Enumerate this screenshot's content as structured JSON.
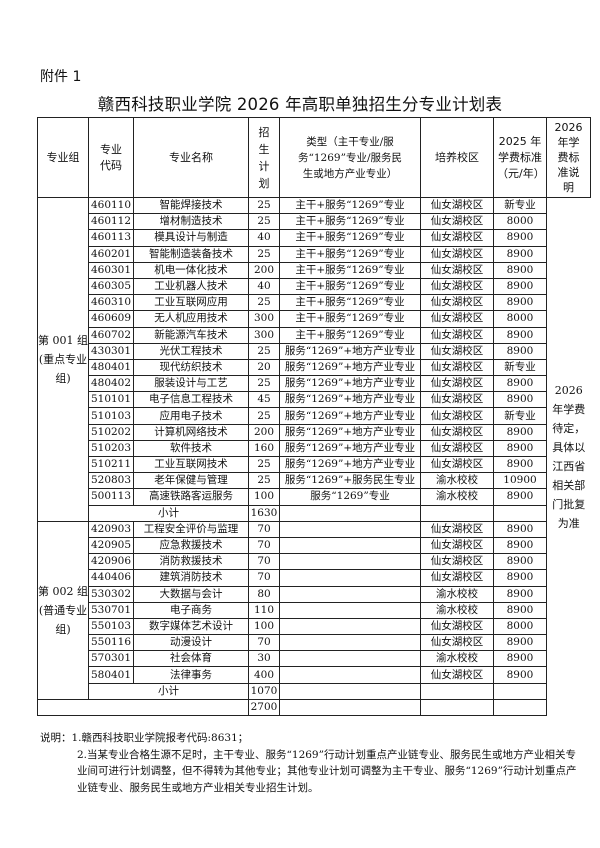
{
  "attachment_label": "附件 1",
  "title": "赣西科技职业学院 2026 年高职单独招生分专业计划表",
  "headers": {
    "group": "专业组",
    "code": "专业代码",
    "name": "专业名称",
    "plan": "招生计划",
    "type": "类型（主干专业/服务“1269”专业/服务民生或地方产业专业）",
    "campus": "培养校区",
    "fee2025": "2025 年学费标准（元/年）",
    "fee2026": "2026 年学费标准说明"
  },
  "fee2026_note": "2026 年学费待定，具体以江西省相关部门批复为准",
  "groups": [
    {
      "label": "第 001 组(重点专业组)",
      "rows": [
        {
          "code": "460110",
          "name": "智能焊接技术",
          "plan": "25",
          "type": "主干+服务“1269”专业",
          "campus": "仙女湖校区",
          "fee": "新专业"
        },
        {
          "code": "460112",
          "name": "增材制造技术",
          "plan": "25",
          "type": "主干+服务“1269”专业",
          "campus": "仙女湖校区",
          "fee": "8000"
        },
        {
          "code": "460113",
          "name": "模具设计与制造",
          "plan": "40",
          "type": "主干+服务“1269”专业",
          "campus": "仙女湖校区",
          "fee": "8900"
        },
        {
          "code": "460201",
          "name": "智能制造装备技术",
          "plan": "25",
          "type": "主干+服务“1269”专业",
          "campus": "仙女湖校区",
          "fee": "8900"
        },
        {
          "code": "460301",
          "name": "机电一体化技术",
          "plan": "200",
          "type": "主干+服务“1269”专业",
          "campus": "仙女湖校区",
          "fee": "8900"
        },
        {
          "code": "460305",
          "name": "工业机器人技术",
          "plan": "40",
          "type": "主干+服务“1269”专业",
          "campus": "仙女湖校区",
          "fee": "8900"
        },
        {
          "code": "460310",
          "name": "工业互联网应用",
          "plan": "25",
          "type": "主干+服务“1269”专业",
          "campus": "仙女湖校区",
          "fee": "8900"
        },
        {
          "code": "460609",
          "name": "无人机应用技术",
          "plan": "300",
          "type": "主干+服务“1269”专业",
          "campus": "仙女湖校区",
          "fee": "8000"
        },
        {
          "code": "460702",
          "name": "新能源汽车技术",
          "plan": "300",
          "type": "主干+服务“1269”专业",
          "campus": "仙女湖校区",
          "fee": "8900"
        },
        {
          "code": "430301",
          "name": "光伏工程技术",
          "plan": "25",
          "type": "服务“1269”+地方产业专业",
          "campus": "仙女湖校区",
          "fee": "8900"
        },
        {
          "code": "480401",
          "name": "现代纺织技术",
          "plan": "20",
          "type": "服务“1269”+地方产业专业",
          "campus": "仙女湖校区",
          "fee": "新专业"
        },
        {
          "code": "480402",
          "name": "服装设计与工艺",
          "plan": "25",
          "type": "服务“1269”+地方产业专业",
          "campus": "仙女湖校区",
          "fee": "8900"
        },
        {
          "code": "510101",
          "name": "电子信息工程技术",
          "plan": "45",
          "type": "服务“1269”+地方产业专业",
          "campus": "仙女湖校区",
          "fee": "8900"
        },
        {
          "code": "510103",
          "name": "应用电子技术",
          "plan": "25",
          "type": "服务“1269”+地方产业专业",
          "campus": "仙女湖校区",
          "fee": "新专业"
        },
        {
          "code": "510202",
          "name": "计算机网络技术",
          "plan": "200",
          "type": "服务“1269”+地方产业专业",
          "campus": "仙女湖校区",
          "fee": "8900"
        },
        {
          "code": "510203",
          "name": "软件技术",
          "plan": "160",
          "type": "服务“1269”+地方产业专业",
          "campus": "仙女湖校区",
          "fee": "8900"
        },
        {
          "code": "510211",
          "name": "工业互联网技术",
          "plan": "25",
          "type": "服务“1269”+地方产业专业",
          "campus": "仙女湖校区",
          "fee": "8900"
        },
        {
          "code": "520803",
          "name": "老年保健与管理",
          "plan": "25",
          "type": "服务“1269”+服务民生专业",
          "campus": "渝水校校",
          "fee": "10900"
        },
        {
          "code": "500113",
          "name": "高速铁路客运服务",
          "plan": "100",
          "type": "服务“1269”专业",
          "campus": "渝水校校",
          "fee": "8900"
        }
      ],
      "subtotal_label": "小计",
      "subtotal": "1630"
    },
    {
      "label": "第 002 组(普通专业组)",
      "rows": [
        {
          "code": "420903",
          "name": "工程安全评价与监理",
          "plan": "70",
          "type": "",
          "campus": "仙女湖校区",
          "fee": "8900"
        },
        {
          "code": "420905",
          "name": "应急救援技术",
          "plan": "70",
          "type": "",
          "campus": "仙女湖校区",
          "fee": "8900"
        },
        {
          "code": "420906",
          "name": "消防救援技术",
          "plan": "70",
          "type": "",
          "campus": "仙女湖校区",
          "fee": "8900"
        },
        {
          "code": "440406",
          "name": "建筑消防技术",
          "plan": "70",
          "type": "",
          "campus": "仙女湖校区",
          "fee": "8900"
        },
        {
          "code": "530302",
          "name": "大数据与会计",
          "plan": "80",
          "type": "",
          "campus": "渝水校校",
          "fee": "8900"
        },
        {
          "code": "530701",
          "name": "电子商务",
          "plan": "110",
          "type": "",
          "campus": "渝水校校",
          "fee": "8900"
        },
        {
          "code": "550103",
          "name": "数字媒体艺术设计",
          "plan": "100",
          "type": "",
          "campus": "仙女湖校区",
          "fee": "8000"
        },
        {
          "code": "550116",
          "name": "动漫设计",
          "plan": "70",
          "type": "",
          "campus": "仙女湖校区",
          "fee": "8900"
        },
        {
          "code": "570301",
          "name": "社会体育",
          "plan": "30",
          "type": "",
          "campus": "渝水校校",
          "fee": "8900"
        },
        {
          "code": "580401",
          "name": "法律事务",
          "plan": "400",
          "type": "",
          "campus": "仙女湖校区",
          "fee": "8900"
        }
      ],
      "subtotal_label": "小计",
      "subtotal": "1070"
    }
  ],
  "total": "2700",
  "notes": [
    "说明：1.赣西科技职业学院报考代码:8631；",
    "2.当某专业合格生源不足时，主干专业、服务“1269”行动计划重点产业链专业、服务民生或地方产业相关专业间可进行计划调整，但不得转为其他专业；其他专业计划可调整为主干专业、服务“1269”行动计划重点产业链专业、服务民生或地方产业相关专业招生计划。"
  ]
}
